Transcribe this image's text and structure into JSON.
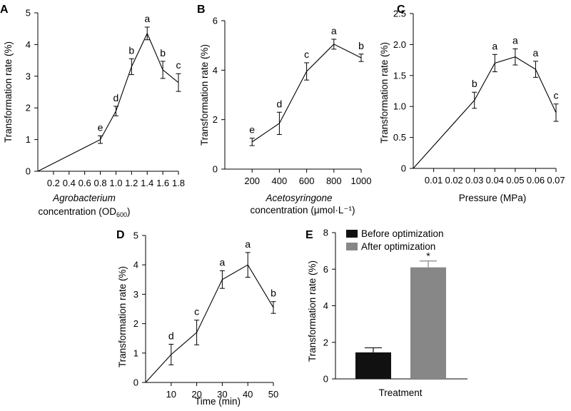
{
  "colors": {
    "line": "#000000",
    "before": "#111111",
    "after": "#878787"
  },
  "chart_data": [
    {
      "panel": "A",
      "type": "line",
      "ylabel": "Transformation rate (%)",
      "xlabel": "Agrobacterium",
      "xlabel_line2_pre": "concentration (OD",
      "xlabel_line2_sub": "600",
      "xlabel_line2_post": ")",
      "xlim": [
        0,
        1.8
      ],
      "ylim": [
        0,
        5
      ],
      "xticks": [
        "0.2",
        "0.4",
        "0.6",
        "0.8",
        "1.0",
        "1.2",
        "1.4",
        "1.6",
        "1.8"
      ],
      "xtick_values": [
        0.2,
        0.4,
        0.6,
        0.8,
        1.0,
        1.2,
        1.4,
        1.6,
        1.8
      ],
      "yticks": [
        "0",
        "1",
        "2",
        "3",
        "4",
        "5"
      ],
      "ytick_values": [
        0,
        1,
        2,
        3,
        4,
        5
      ],
      "x": [
        0.8,
        1.0,
        1.2,
        1.4,
        1.6,
        1.8
      ],
      "y": [
        1.0,
        1.9,
        3.3,
        4.35,
        3.2,
        2.8
      ],
      "err": [
        0.12,
        0.15,
        0.25,
        0.2,
        0.27,
        0.28
      ],
      "letters": [
        "e",
        "d",
        "b",
        "a",
        "b",
        "c"
      ],
      "origin_line": true
    },
    {
      "panel": "B",
      "type": "line",
      "ylabel": "Transformation rate (%)",
      "xlabel": "Acetosyringone",
      "xlabel_line2": "concentration (μmol·L⁻¹)",
      "xlim": [
        0,
        1000
      ],
      "ylim": [
        0,
        6
      ],
      "xticks": [
        "200",
        "400",
        "600",
        "800",
        "1000"
      ],
      "xtick_values": [
        200,
        400,
        600,
        800,
        1000
      ],
      "yticks": [
        "0",
        "2",
        "4",
        "6"
      ],
      "ytick_values": [
        0,
        2,
        4,
        6
      ],
      "x": [
        200,
        400,
        600,
        800,
        1000
      ],
      "y": [
        1.1,
        1.85,
        3.95,
        5.05,
        4.5
      ],
      "err": [
        0.15,
        0.45,
        0.35,
        0.2,
        0.15
      ],
      "letters": [
        "e",
        "d",
        "c",
        "a",
        "b"
      ],
      "origin_line": false
    },
    {
      "panel": "C",
      "type": "line",
      "ylabel": "Transformation rate (%)",
      "xlabel": "Pressure (MPa)",
      "xlim": [
        0,
        0.07
      ],
      "ylim": [
        0,
        2.5
      ],
      "xticks": [
        "0.01",
        "0.02",
        "0.03",
        "0.04",
        "0.05",
        "0.06",
        "0.07"
      ],
      "xtick_values": [
        0.01,
        0.02,
        0.03,
        0.04,
        0.05,
        0.06,
        0.07
      ],
      "yticks": [
        "0",
        "0.5",
        "1.0",
        "1.5",
        "2.0",
        "2.5"
      ],
      "ytick_values": [
        0,
        0.5,
        1.0,
        1.5,
        2.0,
        2.5
      ],
      "x": [
        0.03,
        0.04,
        0.05,
        0.06,
        0.07
      ],
      "y": [
        1.1,
        1.7,
        1.8,
        1.6,
        0.9
      ],
      "err": [
        0.13,
        0.14,
        0.13,
        0.13,
        0.14
      ],
      "letters": [
        "b",
        "a",
        "a",
        "a",
        "c"
      ],
      "origin_line": true
    },
    {
      "panel": "D",
      "type": "line",
      "ylabel": "Transformation rate (%)",
      "xlabel": "Time (min)",
      "xlim": [
        0,
        50
      ],
      "ylim": [
        0,
        5
      ],
      "xticks": [
        "10",
        "20",
        "30",
        "40",
        "50"
      ],
      "xtick_values": [
        10,
        20,
        30,
        40,
        50
      ],
      "yticks": [
        "0",
        "1",
        "2",
        "3",
        "4",
        "5"
      ],
      "ytick_values": [
        0,
        1,
        2,
        3,
        4,
        5
      ],
      "x": [
        10,
        20,
        30,
        40,
        50
      ],
      "y": [
        0.95,
        1.7,
        3.5,
        4.0,
        2.55
      ],
      "err": [
        0.35,
        0.42,
        0.3,
        0.42,
        0.2
      ],
      "letters": [
        "d",
        "c",
        "a",
        "a",
        "b"
      ],
      "origin_line": true
    },
    {
      "panel": "E",
      "type": "bar",
      "ylabel": "Transformation rate (%)",
      "xlabel": "Treatment",
      "ylim": [
        0,
        8
      ],
      "yticks": [
        "0",
        "2",
        "4",
        "6",
        "8"
      ],
      "ytick_values": [
        0,
        2,
        4,
        6,
        8
      ],
      "series": [
        {
          "name": "Before optimization",
          "value": 1.45,
          "err": 0.25
        },
        {
          "name": "After optimization",
          "value": 6.1,
          "err": 0.35
        }
      ],
      "annotation": "*"
    }
  ]
}
